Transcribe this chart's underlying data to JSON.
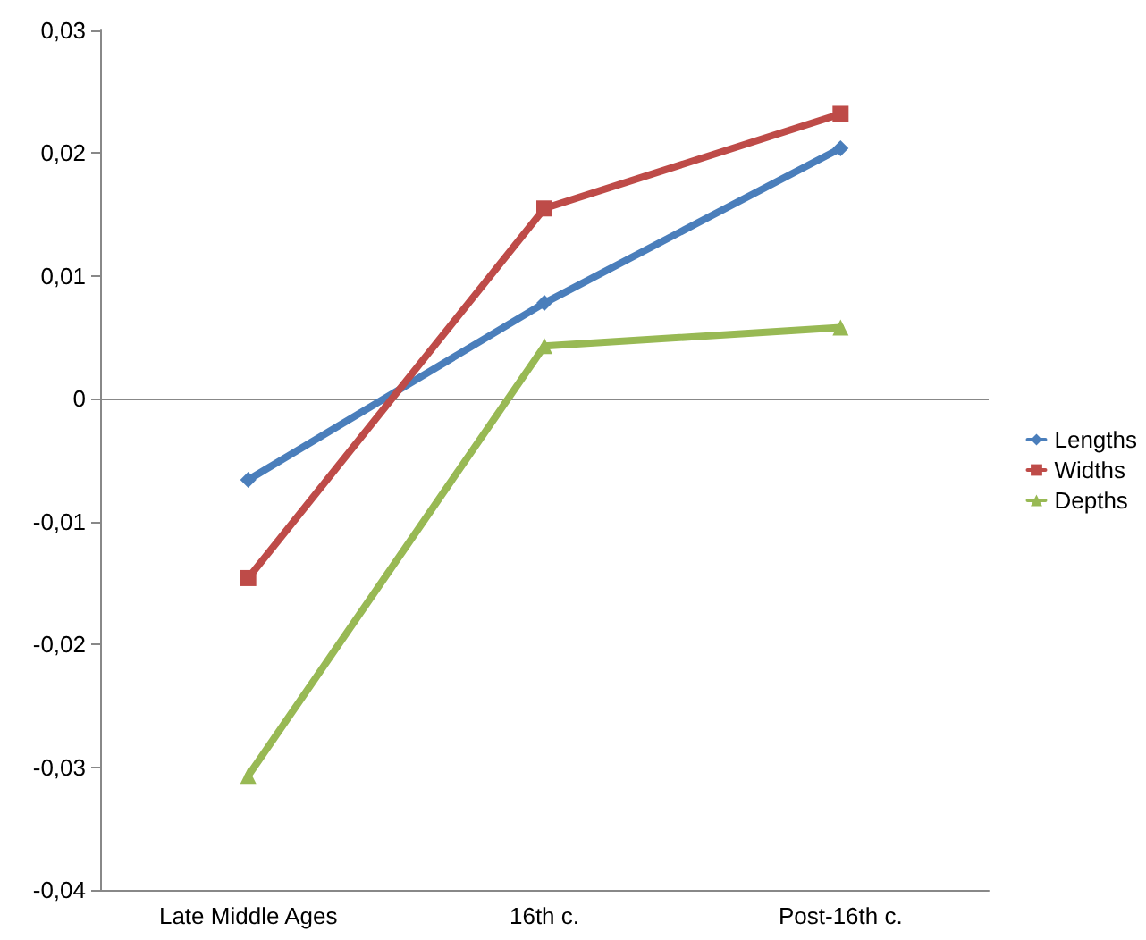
{
  "chart_data": {
    "type": "line",
    "categories": [
      "Late Middle Ages",
      "16th c.",
      "Post-16th c."
    ],
    "series": [
      {
        "name": "Lengths",
        "color": "#4a7ebb",
        "marker": "diamond",
        "values": [
          -0.0066,
          0.0078,
          0.0204
        ]
      },
      {
        "name": "Widths",
        "color": "#be4b48",
        "marker": "square",
        "values": [
          -0.0146,
          0.0155,
          0.0232
        ]
      },
      {
        "name": "Depths",
        "color": "#98b954",
        "marker": "triangle",
        "values": [
          -0.0307,
          0.0043,
          0.0058
        ]
      }
    ],
    "ylim": [
      -0.04,
      0.03
    ],
    "yticks": [
      {
        "value": -0.04,
        "label": "-0,04"
      },
      {
        "value": -0.03,
        "label": "-0,03"
      },
      {
        "value": -0.02,
        "label": "-0,02"
      },
      {
        "value": -0.01,
        "label": "-0,01"
      },
      {
        "value": 0,
        "label": "0"
      },
      {
        "value": 0.01,
        "label": "0,01"
      },
      {
        "value": 0.02,
        "label": "0,02"
      },
      {
        "value": 0.03,
        "label": "0,03"
      }
    ],
    "ref_lines": [
      {
        "axis": "y",
        "value": 0,
        "color": "#888888"
      }
    ],
    "grid": false,
    "legend": "right",
    "line_style": "solid"
  }
}
